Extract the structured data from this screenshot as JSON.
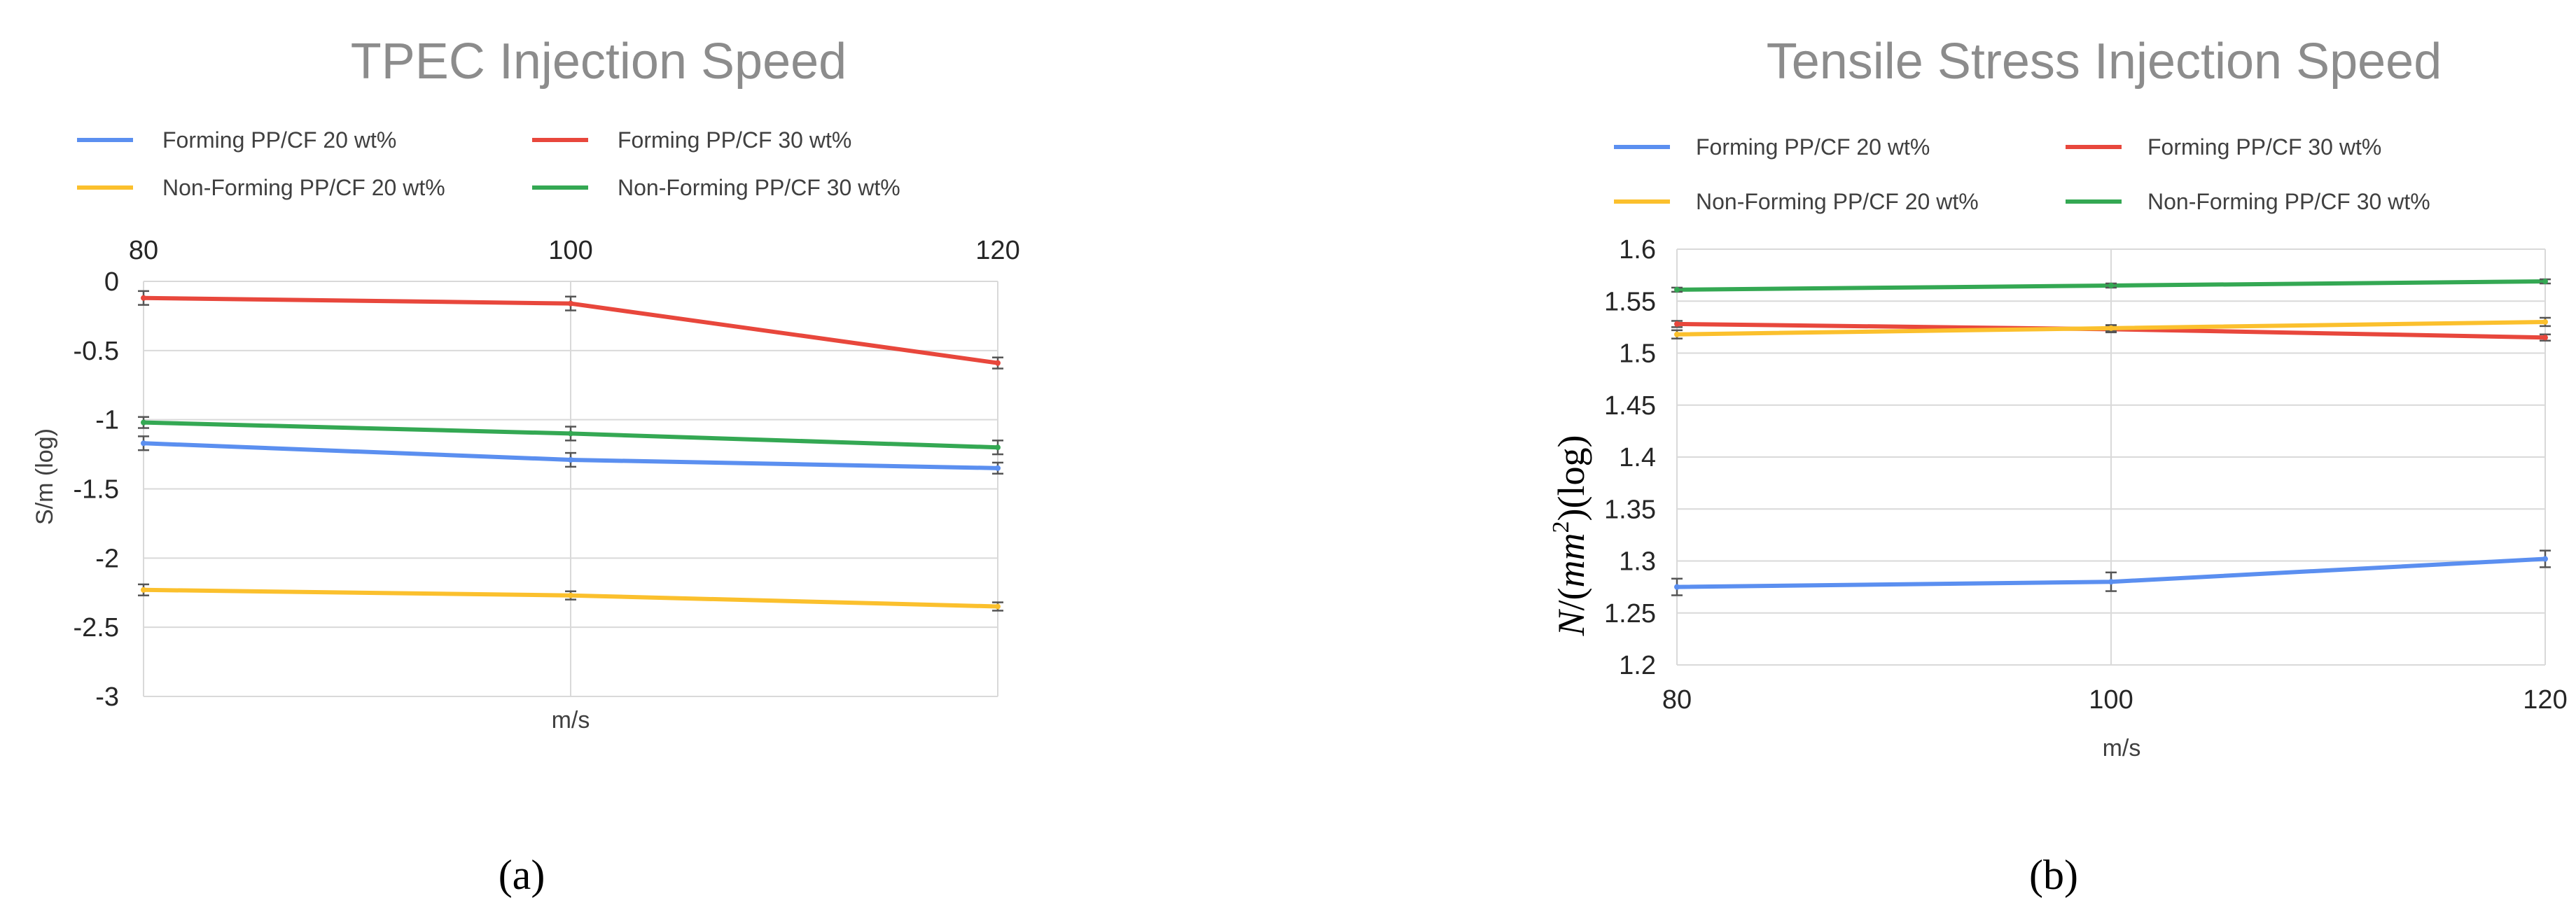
{
  "colors": {
    "forming_20": "#5b8ff0",
    "forming_30": "#e8473c",
    "nonforming_20": "#fbc02d",
    "nonforming_30": "#34a853",
    "grid": "#d9d9d9",
    "errorbar": "#555555"
  },
  "chart_data": [
    {
      "type": "line",
      "panel": "a",
      "caption": "(a)",
      "title": "TPEC Injection Speed",
      "xlabel": "m/s",
      "ylabel": "S/m (log)",
      "x": [
        80,
        100,
        120
      ],
      "x_tick_labels": [
        "80",
        "100",
        "120"
      ],
      "x_axis_position": "top",
      "xlim": [
        80,
        120
      ],
      "ylim": [
        -3,
        0
      ],
      "y_ticks": [
        0,
        -0.5,
        -1,
        -1.5,
        -2,
        -2.5,
        -3
      ],
      "y_tick_labels": [
        "0",
        "-0.5",
        "-1",
        "-1.5",
        "-2",
        "-2.5",
        "-3"
      ],
      "grid": true,
      "legend_position": "top",
      "series": [
        {
          "name": "Forming PP/CF 20 wt%",
          "color_key": "forming_20",
          "values": [
            -1.17,
            -1.29,
            -1.35
          ],
          "errors": [
            0.05,
            0.05,
            0.04
          ]
        },
        {
          "name": "Forming PP/CF 30 wt%",
          "color_key": "forming_30",
          "values": [
            -0.12,
            -0.16,
            -0.59
          ],
          "errors": [
            0.05,
            0.05,
            0.04
          ]
        },
        {
          "name": "Non-Forming PP/CF 20 wt%",
          "color_key": "nonforming_20",
          "values": [
            -2.23,
            -2.27,
            -2.35
          ],
          "errors": [
            0.04,
            0.03,
            0.03
          ]
        },
        {
          "name": "Non-Forming PP/CF 30 wt%",
          "color_key": "nonforming_30",
          "values": [
            -1.02,
            -1.1,
            -1.2
          ],
          "errors": [
            0.04,
            0.05,
            0.05
          ]
        }
      ]
    },
    {
      "type": "line",
      "panel": "b",
      "caption": "(b)",
      "title": "Tensile Stress Injection Speed",
      "xlabel": "m/s",
      "ylabel": "N/(mm²)(log)",
      "ylabel_parts": {
        "n": "N",
        "slash": "/(",
        "mm": "mm",
        "sup": "2",
        "close": ")(log)"
      },
      "x": [
        80,
        100,
        120
      ],
      "x_tick_labels": [
        "80",
        "100",
        "120"
      ],
      "x_axis_position": "bottom",
      "xlim": [
        80,
        120
      ],
      "ylim": [
        1.2,
        1.6
      ],
      "y_ticks": [
        1.6,
        1.55,
        1.5,
        1.45,
        1.4,
        1.35,
        1.3,
        1.25,
        1.2
      ],
      "y_tick_labels": [
        "1.6",
        "1.55",
        "1.5",
        "1.45",
        "1.4",
        "1.35",
        "1.3",
        "1.25",
        "1.2"
      ],
      "grid": true,
      "legend_position": "top",
      "series": [
        {
          "name": "Forming PP/CF 20 wt%",
          "color_key": "forming_20",
          "values": [
            1.275,
            1.28,
            1.302
          ],
          "errors": [
            0.008,
            0.009,
            0.008
          ]
        },
        {
          "name": "Forming PP/CF 30 wt%",
          "color_key": "forming_30",
          "values": [
            1.528,
            1.523,
            1.515
          ],
          "errors": [
            0.003,
            0.003,
            0.003
          ]
        },
        {
          "name": "Non-Forming PP/CF 20 wt%",
          "color_key": "nonforming_20",
          "values": [
            1.518,
            1.524,
            1.53
          ],
          "errors": [
            0.004,
            0.003,
            0.004
          ]
        },
        {
          "name": "Non-Forming PP/CF 30 wt%",
          "color_key": "nonforming_30",
          "values": [
            1.561,
            1.565,
            1.569
          ],
          "errors": [
            0.002,
            0.002,
            0.002
          ]
        }
      ]
    }
  ]
}
